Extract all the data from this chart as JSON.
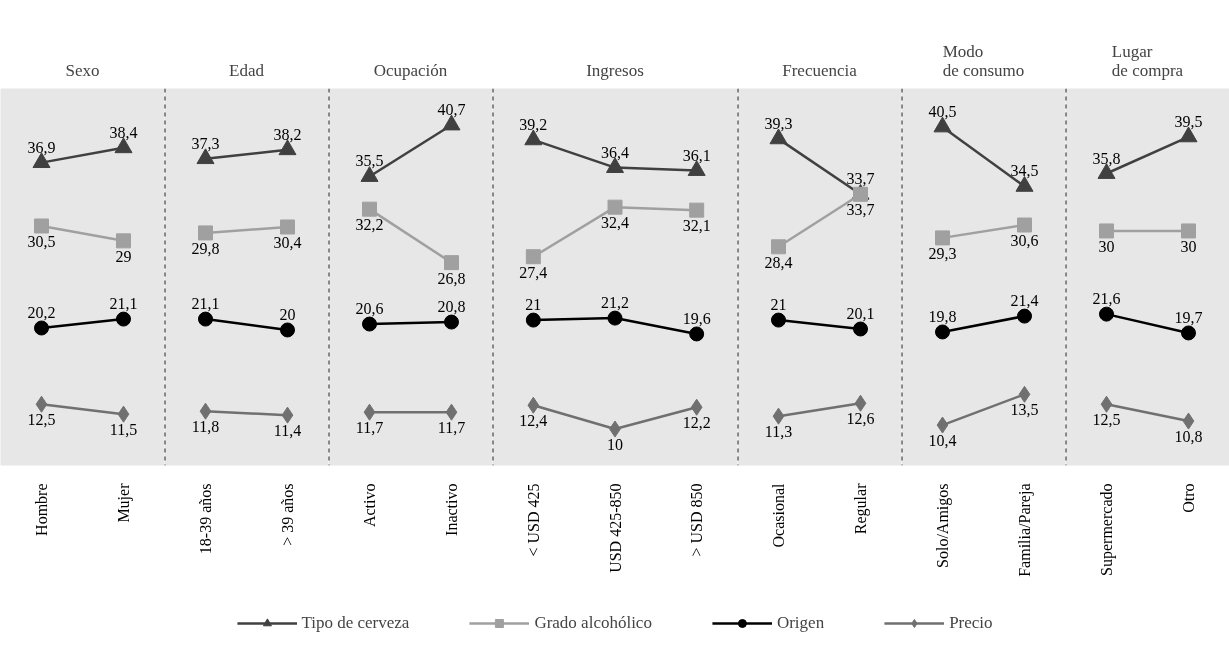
{
  "chart_data": [
    {
      "type": "line",
      "title": "Sexo",
      "categories": [
        "Hombre",
        "Mujer"
      ],
      "tick_labels": "x",
      "legend": "bottom",
      "series": [
        {
          "name": "Tipo de cerveza",
          "color": "#404040",
          "marker": "triangle",
          "values": [
            36.9,
            38.4
          ],
          "value_labels": [
            "36,9",
            "38,4"
          ]
        },
        {
          "name": "Grado alcohólico",
          "color": "#a0a0a0",
          "marker": "square",
          "values": [
            30.5,
            29
          ],
          "value_labels": [
            "30,5",
            "29"
          ]
        },
        {
          "name": "Origen",
          "color": "#000000",
          "marker": "circle",
          "values": [
            20.2,
            21.1
          ],
          "value_labels": [
            "20,2",
            "21,1"
          ]
        },
        {
          "name": "Precio",
          "color": "#707070",
          "marker": "diamond",
          "values": [
            12.5,
            11.5
          ],
          "value_labels": [
            "12,5",
            "11,5"
          ]
        }
      ]
    },
    {
      "type": "line",
      "title": "Edad",
      "categories": [
        "18-39 años",
        "> 39 años"
      ],
      "tick_labels": "x",
      "series": [
        {
          "color": "#404040",
          "marker": "triangle",
          "values": [
            37.3,
            38.2
          ],
          "value_labels": [
            "37,3",
            "38,2"
          ]
        },
        {
          "color": "#a0a0a0",
          "marker": "square",
          "values": [
            29.8,
            30.4
          ],
          "value_labels": [
            "29,8",
            "30,4"
          ]
        },
        {
          "color": "#000000",
          "marker": "circle",
          "values": [
            21.1,
            20
          ],
          "value_labels": [
            "21,1",
            "20"
          ]
        },
        {
          "color": "#707070",
          "marker": "diamond",
          "values": [
            11.8,
            11.4
          ],
          "value_labels": [
            "11,8",
            "11,4"
          ]
        }
      ]
    },
    {
      "type": "line",
      "title": "Ocupación",
      "categories": [
        "Activo",
        "Inactivo"
      ],
      "tick_labels": "x",
      "series": [
        {
          "color": "#404040",
          "marker": "triangle",
          "values": [
            35.5,
            40.7
          ],
          "value_labels": [
            "35,5",
            "40,7"
          ]
        },
        {
          "color": "#a0a0a0",
          "marker": "square",
          "values": [
            32.2,
            26.8
          ],
          "value_labels": [
            "32,2",
            "26,8"
          ]
        },
        {
          "color": "#000000",
          "marker": "circle",
          "values": [
            20.6,
            20.8
          ],
          "value_labels": [
            "20,6",
            "20,8"
          ]
        },
        {
          "color": "#707070",
          "marker": "diamond",
          "values": [
            11.7,
            11.7
          ],
          "value_labels": [
            "11,7",
            "11,7"
          ]
        }
      ]
    },
    {
      "type": "line",
      "title": "Ingresos",
      "categories": [
        "< USD 425",
        "USD 425-850",
        "> USD 850"
      ],
      "tick_labels": "x",
      "series": [
        {
          "color": "#404040",
          "marker": "triangle",
          "values": [
            39.2,
            36.4,
            36.1
          ],
          "value_labels": [
            "39,2",
            "36,4",
            "36,1"
          ]
        },
        {
          "color": "#a0a0a0",
          "marker": "square",
          "values": [
            27.4,
            32.4,
            32.1
          ],
          "value_labels": [
            "27,4",
            "32,4",
            "32,1"
          ]
        },
        {
          "color": "#000000",
          "marker": "circle",
          "values": [
            21,
            21.2,
            19.6
          ],
          "value_labels": [
            "21",
            "21,2",
            "19,6"
          ]
        },
        {
          "color": "#707070",
          "marker": "diamond",
          "values": [
            12.4,
            10,
            12.2
          ],
          "value_labels": [
            "12,4",
            "10",
            "12,2"
          ]
        }
      ]
    },
    {
      "type": "line",
      "title": "Frecuencia",
      "categories": [
        "Ocasional",
        "Regular"
      ],
      "tick_labels": "x",
      "series": [
        {
          "color": "#404040",
          "marker": "triangle",
          "values": [
            39.3,
            33.7
          ],
          "value_labels": [
            "39,3",
            "33,7"
          ]
        },
        {
          "color": "#a0a0a0",
          "marker": "square",
          "values": [
            28.4,
            33.7
          ],
          "value_labels": [
            "28,4",
            "33,7"
          ]
        },
        {
          "color": "#000000",
          "marker": "circle",
          "values": [
            21,
            20.1
          ],
          "value_labels": [
            "21",
            "20,1"
          ]
        },
        {
          "color": "#707070",
          "marker": "diamond",
          "values": [
            11.3,
            12.6
          ],
          "value_labels": [
            "11,3",
            "12,6"
          ]
        }
      ]
    },
    {
      "type": "line",
      "title": "Modo de consumo",
      "categories": [
        "Solo/Amigos",
        "Familia/Pareja"
      ],
      "tick_labels": "x",
      "series": [
        {
          "color": "#404040",
          "marker": "triangle",
          "values": [
            40.5,
            34.5
          ],
          "value_labels": [
            "40,5",
            "34,5"
          ]
        },
        {
          "color": "#a0a0a0",
          "marker": "square",
          "values": [
            29.3,
            30.6
          ],
          "value_labels": [
            "29,3",
            "30,6"
          ]
        },
        {
          "color": "#000000",
          "marker": "circle",
          "values": [
            19.8,
            21.4
          ],
          "value_labels": [
            "19,8",
            "21,4"
          ]
        },
        {
          "color": "#707070",
          "marker": "diamond",
          "values": [
            10.4,
            13.5
          ],
          "value_labels": [
            "10,4",
            "13,5"
          ]
        }
      ]
    },
    {
      "type": "line",
      "title": "Lugar de compra",
      "categories": [
        "Supermercado",
        "Otro"
      ],
      "tick_labels": "x",
      "series": [
        {
          "color": "#404040",
          "marker": "triangle",
          "values": [
            35.8,
            39.5
          ],
          "value_labels": [
            "35,8",
            "39,5"
          ]
        },
        {
          "color": "#a0a0a0",
          "marker": "square",
          "values": [
            30,
            30
          ],
          "value_labels": [
            "30",
            "30"
          ]
        },
        {
          "color": "#000000",
          "marker": "circle",
          "values": [
            21.6,
            19.7
          ],
          "value_labels": [
            "21,6",
            "19,7"
          ]
        },
        {
          "color": "#707070",
          "marker": "diamond",
          "values": [
            12.5,
            10.8
          ],
          "value_labels": [
            "12,5",
            "10,8"
          ]
        }
      ]
    }
  ]
}
